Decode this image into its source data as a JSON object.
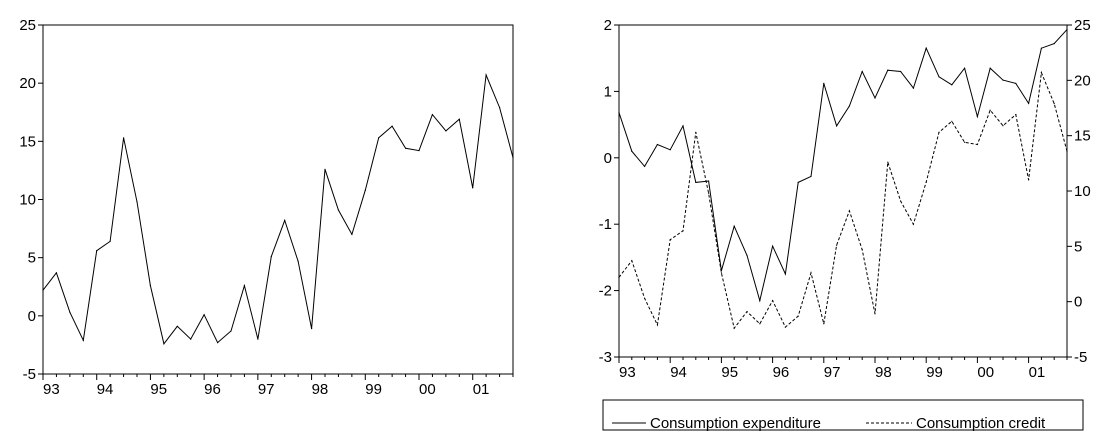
{
  "chart_data": [
    {
      "type": "line",
      "x_tick_labels": [
        "93",
        "94",
        "95",
        "96",
        "97",
        "98",
        "99",
        "00",
        "01"
      ],
      "x_range": [
        1993.0,
        2001.75
      ],
      "ylim": [
        -5,
        25
      ],
      "y_ticks": [
        -5,
        0,
        5,
        10,
        15,
        20,
        25
      ],
      "y_tick_labels": [
        "-5",
        "0",
        "5",
        "10",
        "15",
        "20",
        "25"
      ],
      "series": [
        {
          "color": "#000000",
          "x": [
            1993.0,
            1993.25,
            1993.5,
            1993.75,
            1994.0,
            1994.25,
            1994.5,
            1994.75,
            1995.0,
            1995.25,
            1995.5,
            1995.75,
            1996.0,
            1996.25,
            1996.5,
            1996.75,
            1997.0,
            1997.25,
            1997.5,
            1997.75,
            1998.0,
            1998.25,
            1998.5,
            1998.75,
            1999.0,
            1999.25,
            1999.5,
            1999.75,
            2000.0,
            2000.25,
            2000.5,
            2000.75,
            2001.0,
            2001.25,
            2001.5,
            2001.75
          ],
          "values": [
            2.2,
            3.7,
            0.3,
            -2.1,
            5.6,
            6.4,
            15.3,
            9.8,
            2.6,
            -2.4,
            -0.9,
            -2.0,
            0.1,
            -2.3,
            -1.3,
            2.6,
            -2.0,
            5.1,
            8.2,
            4.7,
            -1.1,
            12.6,
            9.1,
            7.0,
            10.8,
            15.3,
            16.3,
            14.4,
            14.2,
            17.3,
            15.9,
            16.9,
            11.0,
            20.7,
            17.9,
            13.6
          ]
        }
      ]
    },
    {
      "type": "line",
      "x_tick_labels": [
        "93",
        "94",
        "95",
        "96",
        "97",
        "98",
        "99",
        "00",
        "01"
      ],
      "x_range": [
        1993.0,
        2001.75
      ],
      "ylim": [
        -3,
        2
      ],
      "y_ticks": [
        -3,
        -2,
        -1,
        0,
        1,
        2
      ],
      "y_tick_labels": [
        "-3",
        "-2",
        "-1",
        "0",
        "1",
        "2"
      ],
      "y2lim": [
        -5,
        25
      ],
      "y2_ticks": [
        -5,
        0,
        5,
        10,
        15,
        20,
        25
      ],
      "y2_tick_labels": [
        "-5",
        "0",
        "5",
        "10",
        "15",
        "20",
        "25"
      ],
      "legend_position": "bottom",
      "series": [
        {
          "name": "Consumption expenditure",
          "axis": "left",
          "style": "solid",
          "color": "#000000",
          "x": [
            1993.0,
            1993.25,
            1993.5,
            1993.75,
            1994.0,
            1994.25,
            1994.5,
            1994.75,
            1995.0,
            1995.25,
            1995.5,
            1995.75,
            1996.0,
            1996.25,
            1996.5,
            1996.75,
            1997.0,
            1997.25,
            1997.5,
            1997.75,
            1998.0,
            1998.25,
            1998.5,
            1998.75,
            1999.0,
            1999.25,
            1999.5,
            1999.75,
            2000.0,
            2000.25,
            2000.5,
            2000.75,
            2001.0,
            2001.25,
            2001.5,
            2001.75
          ],
          "values": [
            0.68,
            0.1,
            -0.13,
            0.2,
            0.12,
            0.48,
            -0.37,
            -0.35,
            -1.7,
            -1.03,
            -1.47,
            -2.15,
            -1.33,
            -1.75,
            -0.37,
            -0.28,
            1.12,
            0.48,
            0.78,
            1.3,
            0.9,
            1.32,
            1.3,
            1.05,
            1.65,
            1.22,
            1.1,
            1.35,
            0.62,
            1.35,
            1.17,
            1.12,
            0.82,
            1.65,
            1.72,
            1.93
          ]
        },
        {
          "name": "Consumption credit",
          "axis": "right",
          "style": "dashed",
          "color": "#000000",
          "x": [
            1993.0,
            1993.25,
            1993.5,
            1993.75,
            1994.0,
            1994.25,
            1994.5,
            1994.75,
            1995.0,
            1995.25,
            1995.5,
            1995.75,
            1996.0,
            1996.25,
            1996.5,
            1996.75,
            1997.0,
            1997.25,
            1997.5,
            1997.75,
            1998.0,
            1998.25,
            1998.5,
            1998.75,
            1999.0,
            1999.25,
            1999.5,
            1999.75,
            2000.0,
            2000.25,
            2000.5,
            2000.75,
            2001.0,
            2001.25,
            2001.5,
            2001.75
          ],
          "values": [
            2.2,
            3.7,
            0.3,
            -2.1,
            5.6,
            6.4,
            15.3,
            9.8,
            2.6,
            -2.4,
            -0.9,
            -2.0,
            0.1,
            -2.3,
            -1.3,
            2.6,
            -2.0,
            5.1,
            8.2,
            4.7,
            -1.1,
            12.6,
            9.1,
            7.0,
            10.8,
            15.3,
            16.3,
            14.4,
            14.2,
            17.3,
            15.9,
            16.9,
            11.0,
            20.7,
            17.9,
            13.6
          ]
        }
      ]
    }
  ]
}
